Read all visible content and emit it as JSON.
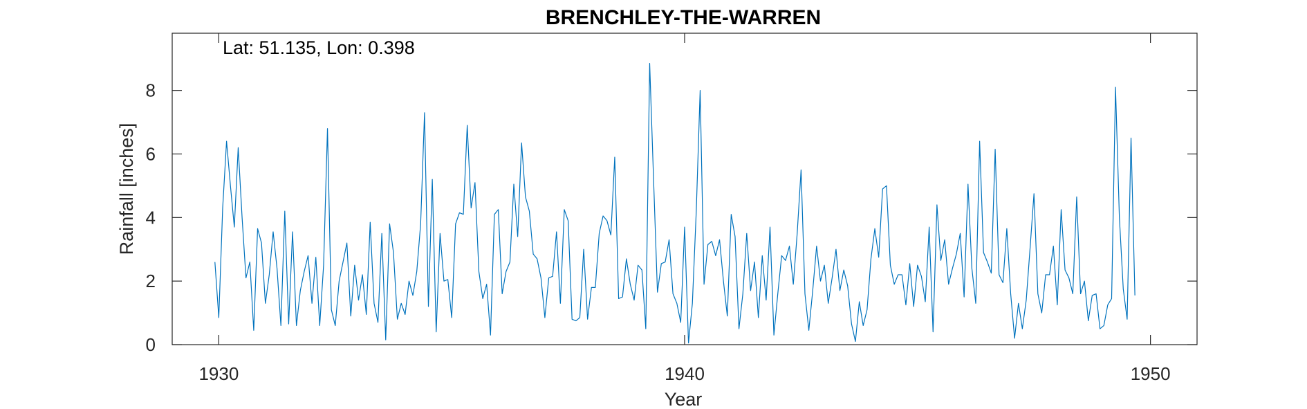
{
  "chart_data": {
    "type": "line",
    "title": "BRENCHLEY-THE-WARREN",
    "annotation": "Lat: 51.135, Lon: 0.398",
    "xlabel": "Year",
    "ylabel": "Rainfall [inches]",
    "xlim": [
      1929,
      1951
    ],
    "ylim": [
      0,
      9.8
    ],
    "xticks": [
      1930,
      1940,
      1950
    ],
    "xtick_labels": [
      "1930",
      "1940",
      "1950"
    ],
    "yticks": [
      0,
      2,
      4,
      6,
      8
    ],
    "ytick_labels": [
      "0",
      "2",
      "4",
      "6",
      "8"
    ],
    "grid": false,
    "line_color": "#0072BD",
    "x_start": 1929.917,
    "x_step": 0.08333,
    "series": [
      {
        "values": [
          2.6,
          0.85,
          4.3,
          6.4,
          5.0,
          3.7,
          6.2,
          4.0,
          2.1,
          2.6,
          0.45,
          3.65,
          3.2,
          1.3,
          2.2,
          3.55,
          2.4,
          0.6,
          4.2,
          0.65,
          3.55,
          0.6,
          1.7,
          2.3,
          2.8,
          1.3,
          2.75,
          0.6,
          2.5,
          6.8,
          1.1,
          0.6,
          2.0,
          2.6,
          3.2,
          0.9,
          2.5,
          1.4,
          2.2,
          0.95,
          3.85,
          1.3,
          0.7,
          3.5,
          0.15,
          3.8,
          2.9,
          0.8,
          1.3,
          0.95,
          2.0,
          1.55,
          2.3,
          3.8,
          7.3,
          1.2,
          5.2,
          0.4,
          3.5,
          2.0,
          2.05,
          0.85,
          3.8,
          4.15,
          4.1,
          6.9,
          4.3,
          5.1,
          2.3,
          1.45,
          1.9,
          0.3,
          4.1,
          4.25,
          1.6,
          2.3,
          2.6,
          5.05,
          3.4,
          6.35,
          4.65,
          4.2,
          2.85,
          2.7,
          2.1,
          0.85,
          2.1,
          2.15,
          3.55,
          1.3,
          4.25,
          3.9,
          0.8,
          0.75,
          0.85,
          3.0,
          0.8,
          1.8,
          1.8,
          3.5,
          4.05,
          3.9,
          3.45,
          5.9,
          1.45,
          1.5,
          2.7,
          1.9,
          1.4,
          2.5,
          2.35,
          0.5,
          8.85,
          5.2,
          1.65,
          2.55,
          2.6,
          3.3,
          1.6,
          1.3,
          0.7,
          3.7,
          0.05,
          1.3,
          4.2,
          8.0,
          1.9,
          3.15,
          3.25,
          2.8,
          3.3,
          2.0,
          0.9,
          4.1,
          3.4,
          0.5,
          1.6,
          3.5,
          1.7,
          2.6,
          0.85,
          2.8,
          1.4,
          3.7,
          0.3,
          1.6,
          2.8,
          2.65,
          3.1,
          1.9,
          3.5,
          5.5,
          1.6,
          0.45,
          1.7,
          3.1,
          2.0,
          2.5,
          1.3,
          2.1,
          3.0,
          1.7,
          2.35,
          1.85,
          0.65,
          0.1,
          1.35,
          0.6,
          1.1,
          2.7,
          3.65,
          2.75,
          4.9,
          5.0,
          2.5,
          1.9,
          2.2,
          2.2,
          1.25,
          2.55,
          1.2,
          2.5,
          2.15,
          1.35,
          3.7,
          0.4,
          4.4,
          2.65,
          3.3,
          1.9,
          2.4,
          2.85,
          3.5,
          1.5,
          5.05,
          2.4,
          1.3,
          6.4,
          2.9,
          2.6,
          2.25,
          6.15,
          2.2,
          1.95,
          3.65,
          1.6,
          0.2,
          1.3,
          0.5,
          1.4,
          3.05,
          4.75,
          1.6,
          1.0,
          2.2,
          2.2,
          3.1,
          1.25,
          4.25,
          2.35,
          2.1,
          1.6,
          4.65,
          1.6,
          2.0,
          0.75,
          1.55,
          1.6,
          0.5,
          0.6,
          1.25,
          1.45,
          8.1,
          4.0,
          1.75,
          0.8,
          6.5,
          1.55
        ]
      }
    ]
  }
}
